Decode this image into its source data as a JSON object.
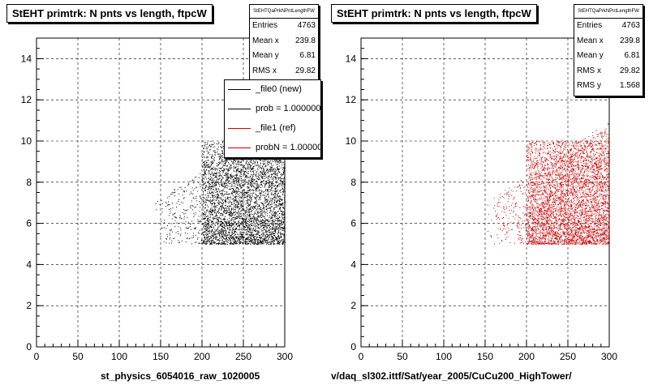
{
  "chart_data": [
    {
      "type": "scatter",
      "title": "StEHT primtrk: N pnts vs length, ftpcW",
      "xlabel": "st_physics_6054016_raw_1020005",
      "xlim": [
        0,
        300
      ],
      "ylim": [
        0,
        15
      ],
      "xticks": [
        0,
        50,
        100,
        150,
        200,
        250,
        300
      ],
      "yticks": [
        0,
        2,
        4,
        6,
        8,
        10,
        12,
        14
      ],
      "grid": true,
      "color": "#000000",
      "stats": {
        "name": "StEHTQaPrkNPntLengthFW",
        "rows": [
          {
            "label": "Entries",
            "value": "4763"
          },
          {
            "label": "Mean x",
            "value": "239.8"
          },
          {
            "label": "Mean y",
            "value": "6.81"
          },
          {
            "label": "RMS x",
            "value": "29.82"
          }
        ]
      },
      "legend": {
        "placement": "top-right",
        "entries": [
          {
            "text": "_file0 (new)",
            "color": "#000000"
          },
          {
            "text": "prob = 1.000000",
            "color": "#000000"
          },
          {
            "text": "_file1 (ref)",
            "color": "#cc0000"
          },
          {
            "text": "probN = 1.000000",
            "color": "#cc0000"
          }
        ]
      },
      "distribution": {
        "points": 4763,
        "x_range": [
          140,
          300
        ],
        "y_range": [
          5,
          11
        ],
        "dense_x": [
          200,
          300
        ],
        "dense_y": [
          5,
          10
        ]
      }
    },
    {
      "type": "scatter",
      "title": "StEHT primtrk: N pnts vs length, ftpcW",
      "xlabel": "v/daq_sl302.ittf/Sat/year_2005/CuCu200_HighTower/",
      "xlim": [
        0,
        300
      ],
      "ylim": [
        0,
        15
      ],
      "xticks": [
        0,
        50,
        100,
        150,
        200,
        250,
        300
      ],
      "yticks": [
        0,
        2,
        4,
        6,
        8,
        10,
        12,
        14
      ],
      "grid": true,
      "color": "#cc0000",
      "stats": {
        "name": "StEHTQaPrkNPntLengthFW",
        "rows": [
          {
            "label": "Entries",
            "value": "4763"
          },
          {
            "label": "Mean x",
            "value": "239.8"
          },
          {
            "label": "Mean y",
            "value": "6.81"
          },
          {
            "label": "RMS x",
            "value": "29.82"
          },
          {
            "label": "RMS y",
            "value": "1.568"
          }
        ]
      },
      "distribution": {
        "points": 4763,
        "x_range": [
          150,
          300
        ],
        "y_range": [
          5,
          11
        ],
        "dense_x": [
          200,
          300
        ],
        "dense_y": [
          5,
          10
        ]
      }
    }
  ]
}
